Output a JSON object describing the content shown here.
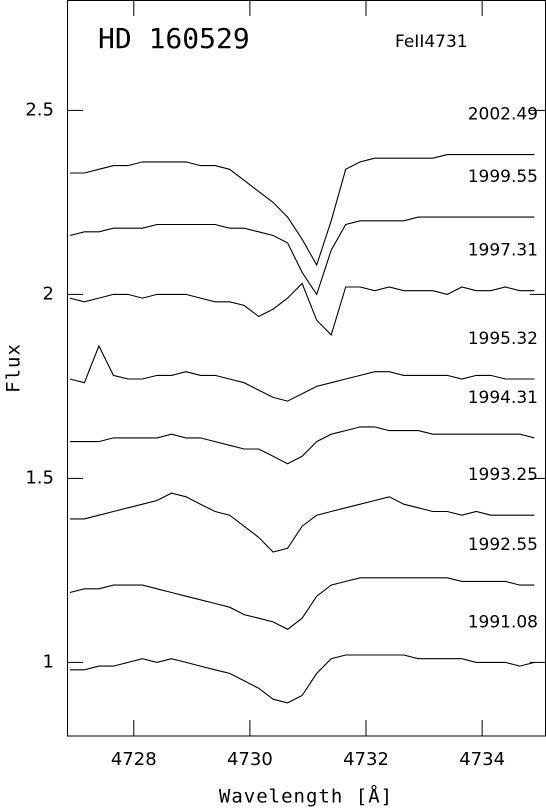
{
  "chart_data": {
    "type": "line",
    "title": "HD 160529",
    "subtitle": "FeII4731",
    "x_label": "Wavelength [Å]",
    "y_label": "Flux",
    "x": [
      4726.9,
      4727.15,
      4727.4,
      4727.65,
      4727.9,
      4728.15,
      4728.4,
      4728.65,
      4728.9,
      4729.15,
      4729.4,
      4729.65,
      4729.9,
      4730.15,
      4730.4,
      4730.65,
      4730.9,
      4731.15,
      4731.4,
      4731.65,
      4731.9,
      4732.15,
      4732.4,
      4732.65,
      4732.9,
      4733.15,
      4733.4,
      4733.65,
      4733.9,
      4734.15,
      4734.4,
      4734.65,
      4734.9
    ],
    "series": [
      {
        "name": "2002.49",
        "color": "#000000",
        "values": [
          2.33,
          2.33,
          2.34,
          2.35,
          2.35,
          2.36,
          2.36,
          2.36,
          2.36,
          2.35,
          2.35,
          2.34,
          2.31,
          2.28,
          2.25,
          2.21,
          2.15,
          2.08,
          2.2,
          2.34,
          2.36,
          2.37,
          2.37,
          2.37,
          2.37,
          2.37,
          2.38,
          2.38,
          2.38,
          2.38,
          2.38,
          2.38,
          2.38
        ]
      },
      {
        "name": "1999.55",
        "color": "#000000",
        "values": [
          2.16,
          2.17,
          2.17,
          2.18,
          2.18,
          2.18,
          2.19,
          2.19,
          2.19,
          2.19,
          2.19,
          2.18,
          2.18,
          2.17,
          2.16,
          2.14,
          2.06,
          2.0,
          2.12,
          2.19,
          2.2,
          2.2,
          2.2,
          2.2,
          2.21,
          2.21,
          2.21,
          2.21,
          2.21,
          2.21,
          2.21,
          2.21,
          2.21
        ]
      },
      {
        "name": "1997.31",
        "color": "#000000",
        "values": [
          1.99,
          1.98,
          1.99,
          2.0,
          2.0,
          1.99,
          2.0,
          2.0,
          2.0,
          1.99,
          1.98,
          1.98,
          1.97,
          1.94,
          1.96,
          1.99,
          2.03,
          1.93,
          1.89,
          2.02,
          2.02,
          2.01,
          2.02,
          2.01,
          2.01,
          2.01,
          2.0,
          2.02,
          2.01,
          2.01,
          2.02,
          2.01,
          2.01
        ]
      },
      {
        "name": "1995.32",
        "color": "#000000",
        "values": [
          1.77,
          1.76,
          1.86,
          1.78,
          1.77,
          1.77,
          1.78,
          1.78,
          1.79,
          1.78,
          1.78,
          1.77,
          1.76,
          1.74,
          1.72,
          1.71,
          1.73,
          1.75,
          1.76,
          1.77,
          1.78,
          1.79,
          1.79,
          1.78,
          1.78,
          1.78,
          1.78,
          1.77,
          1.78,
          1.78,
          1.77,
          1.77,
          1.77
        ]
      },
      {
        "name": "1994.31",
        "color": "#000000",
        "values": [
          1.6,
          1.6,
          1.6,
          1.61,
          1.61,
          1.61,
          1.61,
          1.62,
          1.61,
          1.61,
          1.6,
          1.59,
          1.58,
          1.58,
          1.56,
          1.54,
          1.56,
          1.6,
          1.62,
          1.63,
          1.64,
          1.64,
          1.63,
          1.63,
          1.63,
          1.62,
          1.62,
          1.62,
          1.62,
          1.62,
          1.62,
          1.62,
          1.61
        ]
      },
      {
        "name": "1993.25",
        "color": "#000000",
        "values": [
          1.39,
          1.39,
          1.4,
          1.41,
          1.42,
          1.43,
          1.44,
          1.46,
          1.45,
          1.43,
          1.41,
          1.4,
          1.37,
          1.34,
          1.3,
          1.31,
          1.37,
          1.4,
          1.41,
          1.42,
          1.43,
          1.44,
          1.45,
          1.43,
          1.42,
          1.41,
          1.41,
          1.4,
          1.41,
          1.4,
          1.4,
          1.4,
          1.4
        ]
      },
      {
        "name": "1992.55",
        "color": "#000000",
        "values": [
          1.19,
          1.2,
          1.2,
          1.21,
          1.21,
          1.21,
          1.2,
          1.19,
          1.18,
          1.17,
          1.16,
          1.15,
          1.13,
          1.12,
          1.11,
          1.09,
          1.12,
          1.18,
          1.21,
          1.22,
          1.23,
          1.23,
          1.23,
          1.23,
          1.23,
          1.23,
          1.23,
          1.22,
          1.22,
          1.22,
          1.22,
          1.21,
          1.21
        ]
      },
      {
        "name": "1991.08",
        "color": "#000000",
        "values": [
          0.98,
          0.98,
          0.99,
          0.99,
          1.0,
          1.01,
          1.0,
          1.01,
          1.0,
          0.99,
          0.98,
          0.97,
          0.95,
          0.93,
          0.9,
          0.89,
          0.91,
          0.97,
          1.01,
          1.02,
          1.02,
          1.02,
          1.02,
          1.02,
          1.01,
          1.01,
          1.01,
          1.01,
          1.0,
          1.0,
          1.0,
          0.99,
          1.0
        ]
      }
    ],
    "xlim": [
      4726.85,
      4735.1
    ],
    "ylim": [
      0.8,
      2.8
    ],
    "xticks": [
      4728,
      4730,
      4732,
      4734
    ],
    "yticks": [
      1,
      1.5,
      2,
      2.5
    ]
  }
}
